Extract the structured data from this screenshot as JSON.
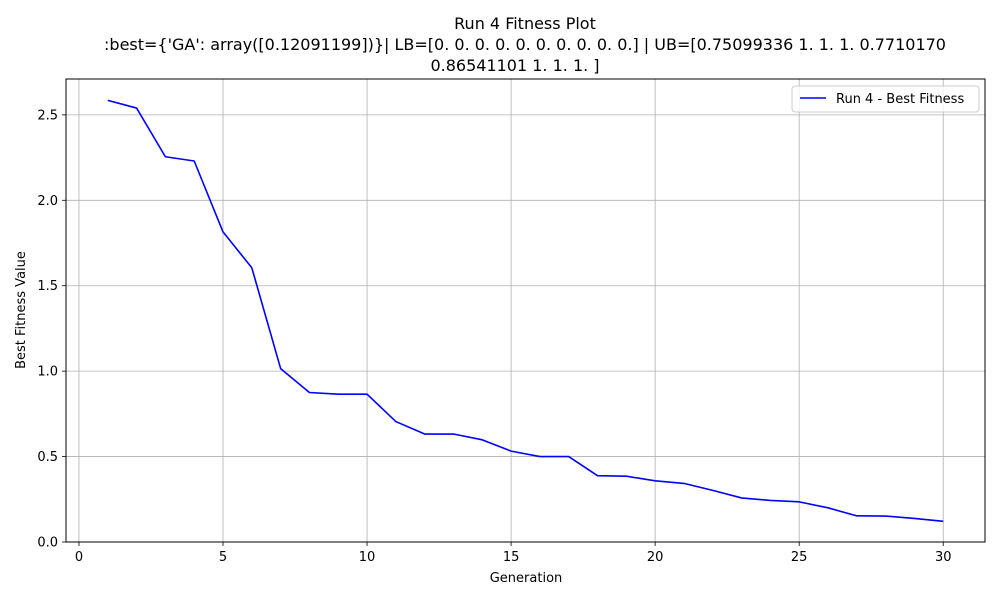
{
  "chart_data": {
    "type": "line",
    "title": "Run 4 Fitness Plot",
    "subtitle_lines": [
      ":best={'GA': array([0.12091199])}| LB=[0. 0. 0. 0. 0. 0. 0. 0. 0. 0.] | UB=[0.75099336 1.         1.         1.         0.7710170",
      "0.86541101 1.         1.         1.        ]"
    ],
    "xlabel": "Generation",
    "ylabel": "Best Fitness Value",
    "xlim": [
      -0.45,
      31.45
    ],
    "ylim": [
      0.0,
      2.71
    ],
    "x_ticks": [
      0,
      5,
      10,
      15,
      20,
      25,
      30
    ],
    "y_ticks": [
      0.0,
      0.5,
      1.0,
      1.5,
      2.0,
      2.5
    ],
    "x_tick_labels": [
      "0",
      "5",
      "10",
      "15",
      "20",
      "25",
      "30"
    ],
    "y_tick_labels": [
      "0.0",
      "0.5",
      "1.0",
      "1.5",
      "2.0",
      "2.5"
    ],
    "grid": true,
    "legend_position": "top-right",
    "series": [
      {
        "name": "Run 4 - Best Fitness",
        "color": "#0000ff",
        "x": [
          1,
          2,
          3,
          4,
          5,
          6,
          7,
          8,
          9,
          10,
          11,
          12,
          13,
          14,
          15,
          16,
          17,
          18,
          19,
          20,
          21,
          22,
          23,
          24,
          25,
          26,
          27,
          28,
          29,
          30
        ],
        "y": [
          2.585,
          2.54,
          2.255,
          2.23,
          1.815,
          1.605,
          1.015,
          0.875,
          0.865,
          0.865,
          0.705,
          0.632,
          0.632,
          0.598,
          0.532,
          0.5,
          0.5,
          0.388,
          0.385,
          0.358,
          0.343,
          0.302,
          0.258,
          0.243,
          0.235,
          0.2,
          0.153,
          0.152,
          0.138,
          0.121
        ]
      }
    ]
  }
}
